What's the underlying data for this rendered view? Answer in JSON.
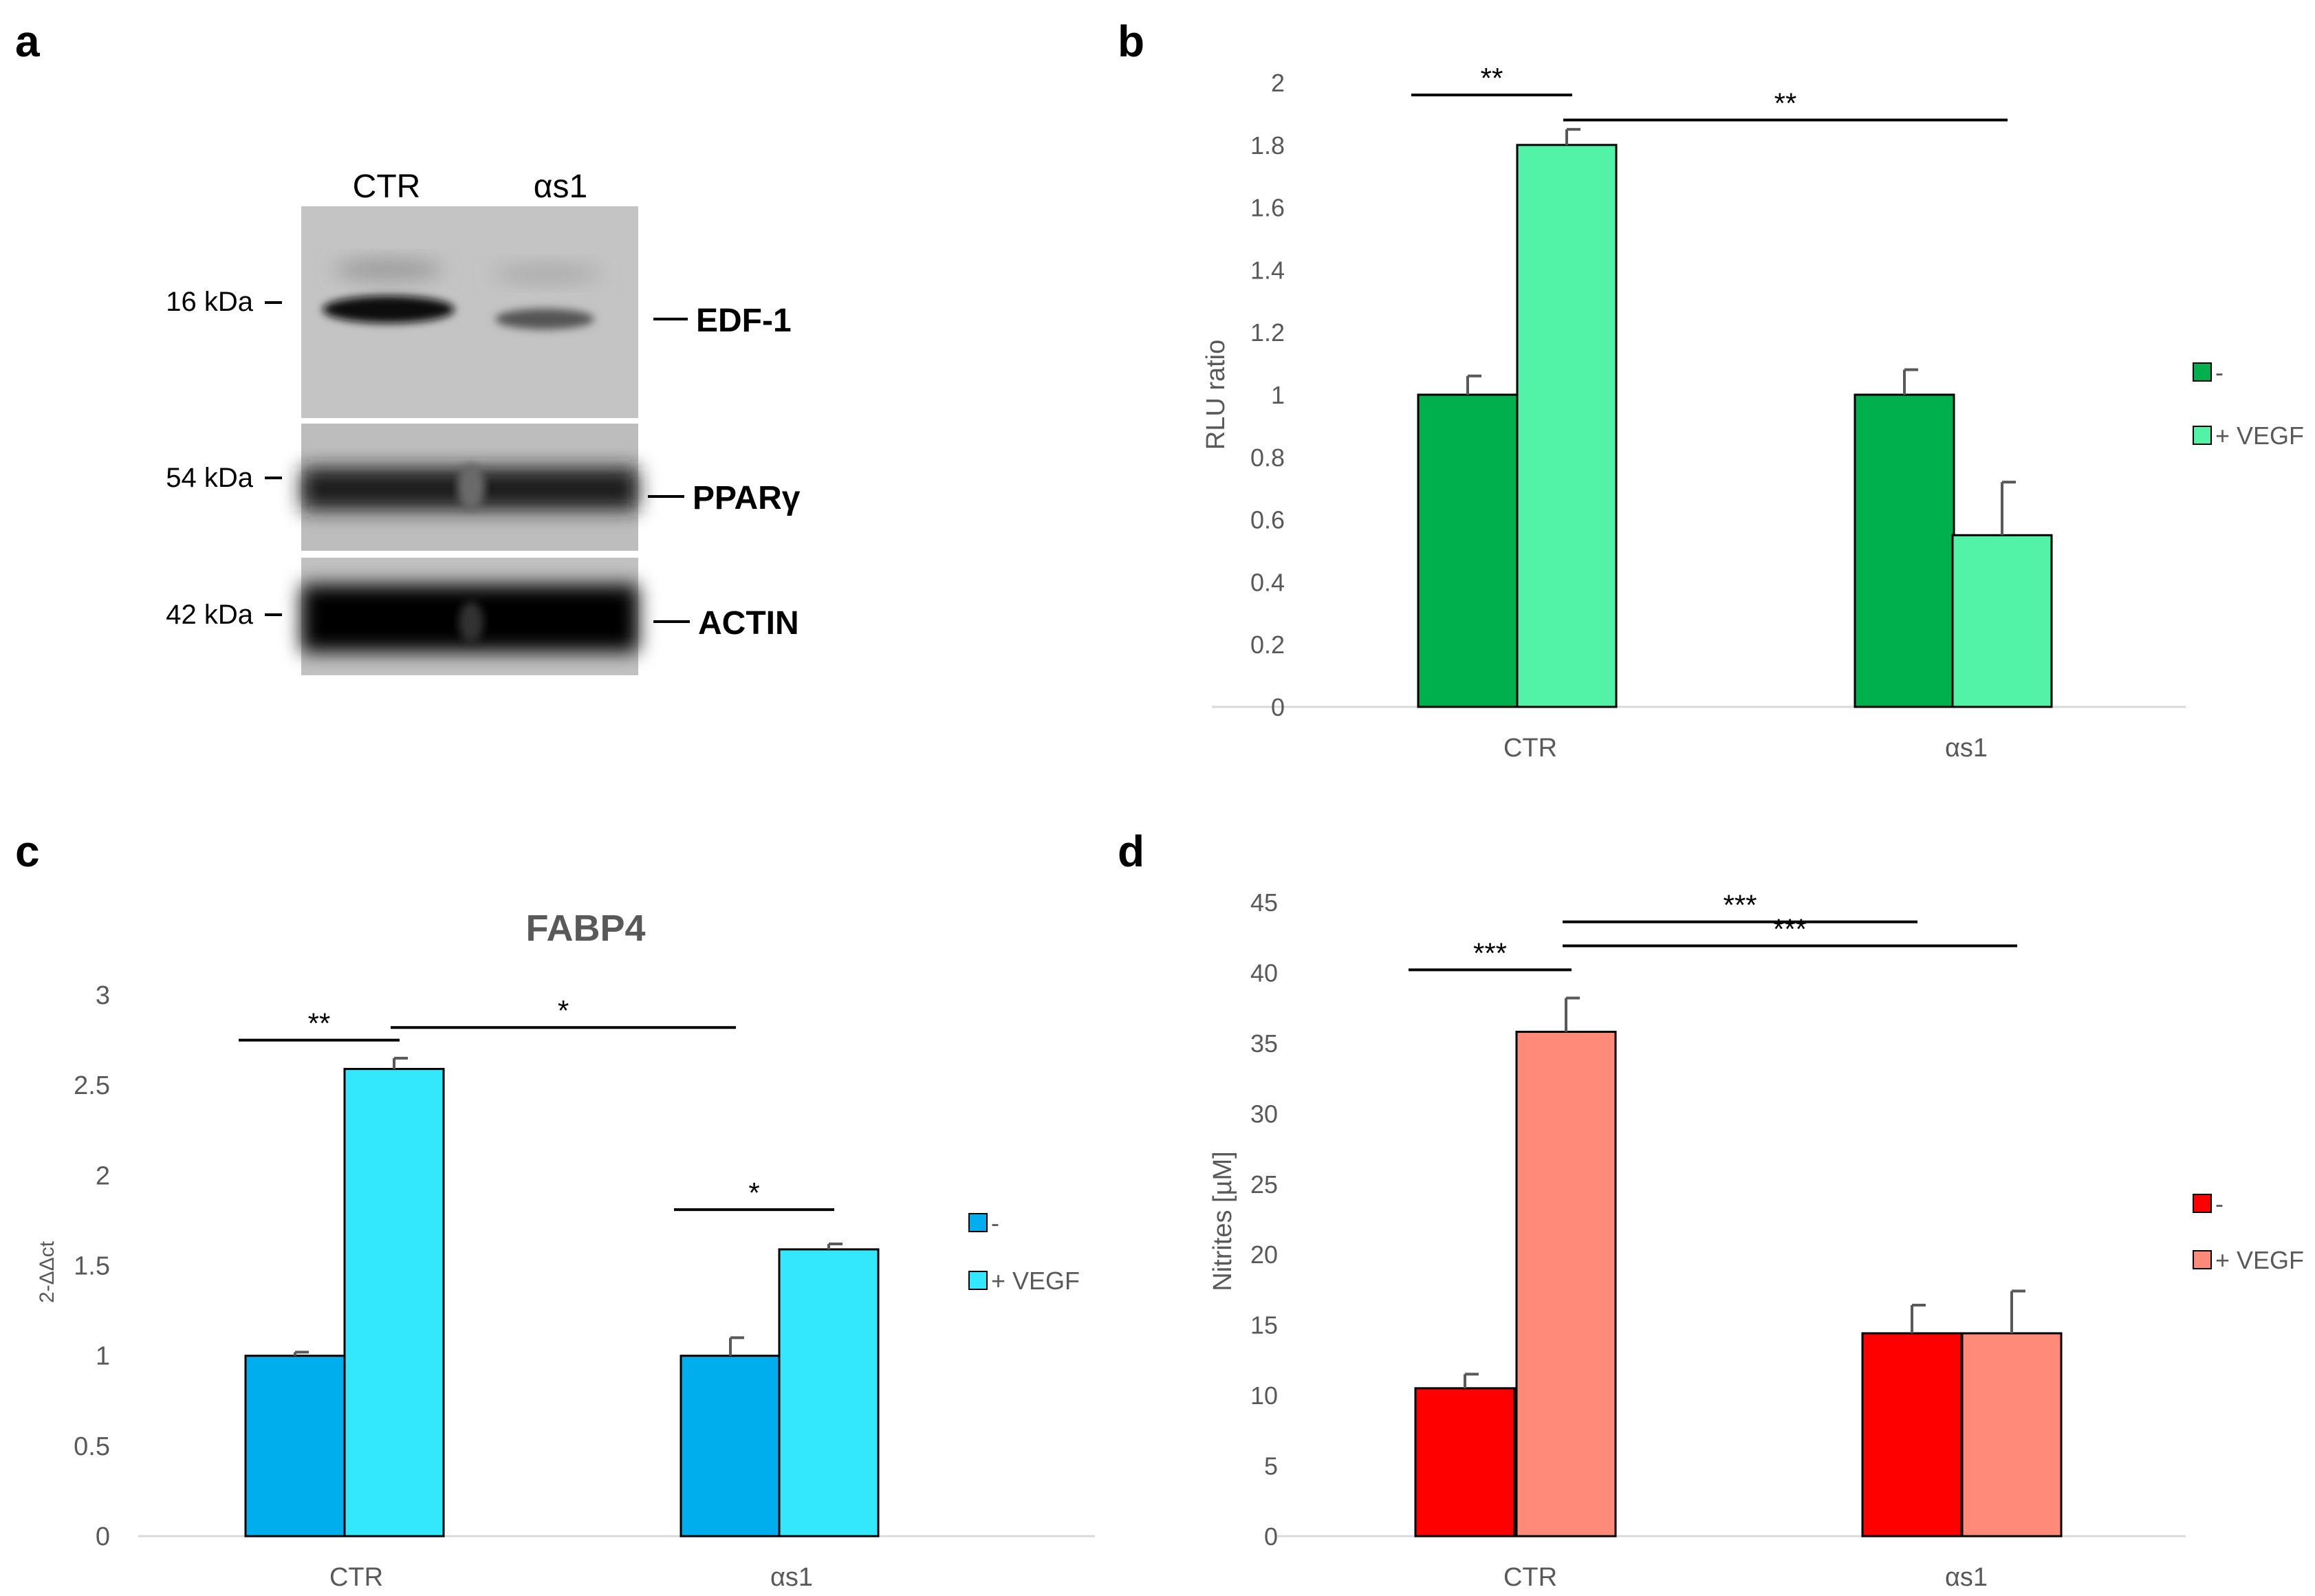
{
  "panels": {
    "a": "a",
    "b": "b",
    "c": "c",
    "d": "d"
  },
  "western_blot": {
    "lanes": [
      "CTR",
      "αs1"
    ],
    "bands": [
      {
        "protein": "EDF-1",
        "mw": "16 kDa"
      },
      {
        "protein": "PPARγ",
        "mw": "54 kDa"
      },
      {
        "protein": "ACTIN",
        "mw": "42 kDa"
      }
    ]
  },
  "colors": {
    "green_dark": "#00B04C",
    "green_light": "#52F3A6",
    "blue_dark": "#00AEEE",
    "blue_light": "#33E8FD",
    "red_dark": "#FF0000",
    "red_light": "#FF8A7A",
    "axis_text": "#595959",
    "axis_line": "#D9D9D9",
    "bar_edge": "#000000"
  },
  "chart_data": [
    {
      "type": "bar",
      "title": "",
      "categories": [
        "CTR",
        "αs1"
      ],
      "series": [
        {
          "name": "-",
          "values": [
            1.0,
            1.0
          ],
          "errors": [
            0.06,
            0.08
          ]
        },
        {
          "name": "+ VEGF",
          "values": [
            1.8,
            0.55
          ],
          "errors": [
            0.05,
            0.17
          ]
        }
      ],
      "xlabel": "",
      "ylabel": "RLU ratio",
      "ylim": [
        0,
        2
      ],
      "yticks": [
        "0",
        "0.2",
        "0.4",
        "0.6",
        "0.8",
        "1",
        "1.2",
        "1.4",
        "1.6",
        "1.8",
        "2"
      ],
      "legend": [
        "-",
        "+ VEGF"
      ],
      "grid": false,
      "significance": [
        {
          "from": "CTR:-",
          "to": "CTR:+ VEGF",
          "label": "**",
          "y": 1.96
        },
        {
          "from": "CTR:+ VEGF",
          "to": "αs1:+ VEGF",
          "label": "**",
          "y": 1.88
        }
      ]
    },
    {
      "type": "bar",
      "title": "FABP4",
      "categories": [
        "CTR",
        "αs1"
      ],
      "series": [
        {
          "name": "-",
          "values": [
            1.0,
            1.0
          ],
          "errors": [
            0.02,
            0.1
          ]
        },
        {
          "name": "+ VEGF",
          "values": [
            2.59,
            1.59
          ],
          "errors": [
            0.06,
            0.03
          ]
        }
      ],
      "xlabel": "",
      "ylabel": "2-ΔΔct",
      "ylim": [
        0,
        3
      ],
      "yticks": [
        "0",
        "0.5",
        "1",
        "1.5",
        "2",
        "2.5",
        "3"
      ],
      "legend": [
        "-",
        "+ VEGF"
      ],
      "grid": false,
      "significance": [
        {
          "from": "CTR:-",
          "to": "CTR:+ VEGF",
          "label": "**",
          "y": 2.75
        },
        {
          "from": "CTR:+ VEGF",
          "to": "αs1:-",
          "label": "*",
          "y": 2.82
        },
        {
          "from": "αs1:-",
          "to": "αs1:+ VEGF",
          "label": "*",
          "y": 1.81
        }
      ]
    },
    {
      "type": "bar",
      "title": "",
      "categories": [
        "CTR",
        "αs1"
      ],
      "series": [
        {
          "name": "-",
          "values": [
            10.5,
            14.4
          ],
          "errors": [
            1.0,
            2.0
          ]
        },
        {
          "name": "+ VEGF",
          "values": [
            35.8,
            14.4
          ],
          "errors": [
            2.4,
            3.0
          ]
        }
      ],
      "xlabel": "",
      "ylabel": "Nitrites [µM]",
      "ylim": [
        0,
        45
      ],
      "yticks": [
        "0",
        "5",
        "10",
        "15",
        "20",
        "25",
        "30",
        "35",
        "40",
        "45"
      ],
      "legend": [
        "-",
        "+ VEGF"
      ],
      "grid": false,
      "significance": [
        {
          "from": "CTR:-",
          "to": "CTR:+ VEGF",
          "label": "***",
          "y": 40.2
        },
        {
          "from": "CTR:+ VEGF",
          "to": "αs1:-",
          "label": "***",
          "y": 43.6
        },
        {
          "from": "CTR:+ VEGF",
          "to": "αs1:+ VEGF",
          "label": "***",
          "y": 41.9
        }
      ]
    }
  ]
}
